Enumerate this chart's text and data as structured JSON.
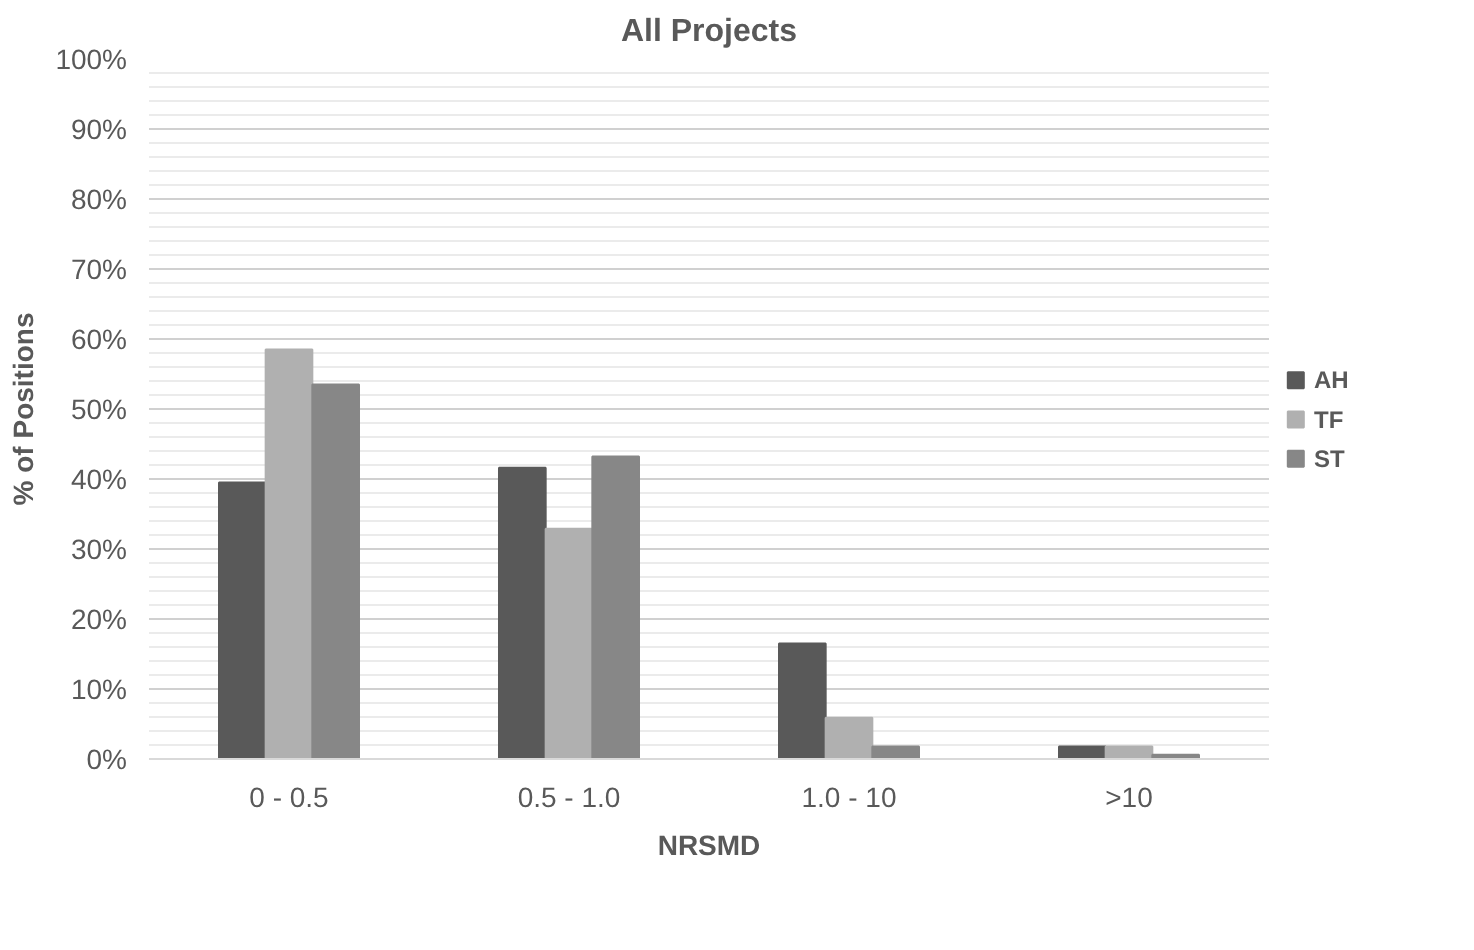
{
  "chart_data": {
    "type": "bar",
    "title": "All Projects",
    "xlabel": "NRSMD",
    "ylabel": "% of Positions",
    "categories": [
      "0 - 0.5",
      "0.5 - 1.0",
      "1.0 - 10",
      ">10"
    ],
    "series": [
      {
        "name": "AH",
        "color": "#595959",
        "values": [
          39.5,
          41.6,
          16.5,
          1.8
        ]
      },
      {
        "name": "TF",
        "color": "#b0b0b0",
        "values": [
          58.5,
          32.9,
          5.9,
          1.8
        ]
      },
      {
        "name": "ST",
        "color": "#878787",
        "values": [
          53.5,
          43.2,
          1.8,
          0.6
        ]
      }
    ],
    "ylim": [
      0,
      100
    ],
    "yticks": [
      {
        "value": 0,
        "label": "0%"
      },
      {
        "value": 10,
        "label": "10%"
      },
      {
        "value": 20,
        "label": "20%"
      },
      {
        "value": 30,
        "label": "30%"
      },
      {
        "value": 40,
        "label": "40%"
      },
      {
        "value": 50,
        "label": "50%"
      },
      {
        "value": 60,
        "label": "60%"
      },
      {
        "value": 70,
        "label": "70%"
      },
      {
        "value": 80,
        "label": "80%"
      },
      {
        "value": 90,
        "label": "90%"
      },
      {
        "value": 100,
        "label": "100%"
      }
    ],
    "grid": "y",
    "legend": "right"
  }
}
